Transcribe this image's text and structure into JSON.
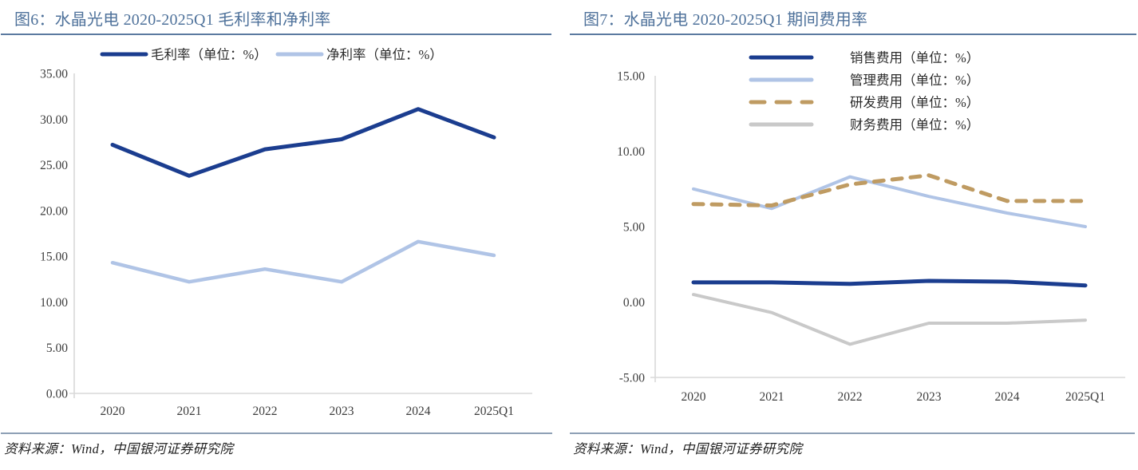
{
  "colors": {
    "title_text": "#4f729b",
    "title_rule": "#5b7aa0",
    "footer_rule": "#8ea0b5",
    "axis_line": "#d9d9d9",
    "tick_text": "#3d3d3d",
    "navy": "#1b3d8f",
    "light_blue": "#b0c4e6",
    "tan": "#bf9b62",
    "gray": "#c9c9c9"
  },
  "panels": [
    {
      "title": "图6：水晶光电 2020-2025Q1 毛利率和净利率",
      "source": "资料来源：Wind，中国银河证券研究院",
      "chart_data": {
        "type": "line",
        "categories": [
          "2020",
          "2021",
          "2022",
          "2023",
          "2024",
          "2025Q1"
        ],
        "series": [
          {
            "name": "毛利率（单位：%）",
            "values": [
              27.2,
              23.8,
              26.7,
              27.8,
              31.1,
              28.0
            ],
            "color": "#1b3d8f",
            "dash": false
          },
          {
            "name": "净利率（单位：%）",
            "values": [
              14.3,
              12.2,
              13.6,
              12.2,
              16.6,
              15.1
            ],
            "color": "#b0c4e6",
            "dash": false
          }
        ],
        "title": "图6：水晶光电 2020-2025Q1 毛利率和净利率",
        "xlabel": "",
        "ylabel": "",
        "ylim": [
          0,
          35
        ],
        "ytick_step": 5,
        "ytick_format": "0.00",
        "grid": false,
        "legend_position": "top-horizontal"
      }
    },
    {
      "title": "图7：水晶光电 2020-2025Q1 期间费用率",
      "source": "资料来源：Wind，中国银河证券研究院",
      "chart_data": {
        "type": "line",
        "categories": [
          "2020",
          "2021",
          "2022",
          "2023",
          "2024",
          "2025Q1"
        ],
        "series": [
          {
            "name": "销售费用（单位：%）",
            "values": [
              1.3,
              1.3,
              1.2,
              1.4,
              1.35,
              1.1
            ],
            "color": "#1b3d8f",
            "dash": false
          },
          {
            "name": "管理费用（单位：%）",
            "values": [
              7.5,
              6.2,
              8.3,
              7.0,
              5.9,
              5.0
            ],
            "color": "#b0c4e6",
            "dash": false
          },
          {
            "name": "研发费用（单位：%）",
            "values": [
              6.5,
              6.4,
              7.8,
              8.4,
              6.7,
              6.7
            ],
            "color": "#bf9b62",
            "dash": true
          },
          {
            "name": "财务费用（单位：%）",
            "values": [
              0.5,
              -0.7,
              -2.8,
              -1.4,
              -1.4,
              -1.2
            ],
            "color": "#c9c9c9",
            "dash": false
          }
        ],
        "title": "图7：水晶光电 2020-2025Q1 期间费用率",
        "xlabel": "",
        "ylabel": "",
        "ylim": [
          -5,
          15
        ],
        "ytick_step": 5,
        "ytick_format": "0.00",
        "grid": false,
        "legend_position": "top-right-vertical"
      }
    }
  ]
}
